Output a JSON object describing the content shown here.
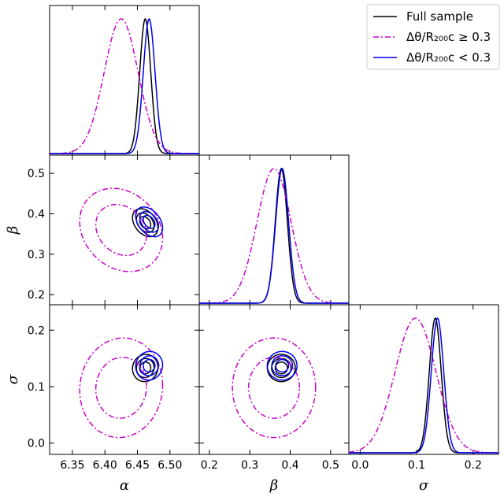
{
  "chart_data": {
    "type": "corner",
    "params": [
      {
        "key": "alpha",
        "label": "α",
        "range": [
          6.315,
          6.545
        ],
        "ticks": [
          "6.35",
          "6.40",
          "6.45",
          "6.50"
        ],
        "tick_values": [
          6.35,
          6.4,
          6.45,
          6.5
        ]
      },
      {
        "key": "beta",
        "label": "β",
        "range": [
          0.175,
          0.545
        ],
        "ticks": [
          "0.2",
          "0.3",
          "0.4",
          "0.5"
        ],
        "tick_values": [
          0.2,
          0.3,
          0.4,
          0.5
        ]
      },
      {
        "key": "sigma",
        "label": "σ",
        "range": [
          -0.02,
          0.245
        ],
        "ticks": [
          "0.0",
          "0.1",
          "0.2"
        ],
        "tick_values": [
          0.0,
          0.1,
          0.2
        ]
      }
    ],
    "legend": {
      "placement": "top-right",
      "entries": [
        {
          "label": "Full sample",
          "color": "#000000",
          "style": "solid"
        },
        {
          "label": "Δθ/R₂₀₀c ≥ 0.3",
          "color": "#cc00cc",
          "style": "dashdot"
        },
        {
          "label": "Δθ/R₂₀₀c < 0.3",
          "color": "#0000ee",
          "style": "solid"
        }
      ]
    },
    "series": [
      {
        "name": "Full sample",
        "color": "#000000",
        "dash": "",
        "mean": {
          "alpha": 6.462,
          "beta": 0.378,
          "sigma": 0.133
        },
        "std": {
          "alpha": 0.0085,
          "beta": 0.015,
          "sigma": 0.0105
        },
        "corr": {
          "alpha_beta": -0.35,
          "alpha_sigma": 0.05,
          "beta_sigma": 0.0
        },
        "contour_scale": [
          1.0,
          1.6,
          2.3
        ]
      },
      {
        "name": "Δθ/R₂₀₀c ≥ 0.3",
        "color": "#cc00cc",
        "dash": "7,3,2,3",
        "mean": {
          "alpha": 6.425,
          "beta": 0.36,
          "sigma": 0.098
        },
        "std": {
          "alpha": 0.026,
          "beta": 0.042,
          "sigma": 0.036
        },
        "corr": {
          "alpha_beta": -0.2,
          "alpha_sigma": 0.05,
          "beta_sigma": 0.0
        },
        "contour_scale": [
          1.5,
          2.45
        ]
      },
      {
        "name": "Δθ/R₂₀₀c < 0.3",
        "color": "#0000ee",
        "dash": "",
        "mean": {
          "alpha": 6.468,
          "beta": 0.38,
          "sigma": 0.137
        },
        "std": {
          "alpha": 0.009,
          "beta": 0.016,
          "sigma": 0.011
        },
        "corr": {
          "alpha_beta": -0.4,
          "alpha_sigma": 0.05,
          "beta_sigma": 0.0
        },
        "contour_scale": [
          1.0,
          1.6,
          2.3
        ]
      }
    ],
    "grid": false
  }
}
